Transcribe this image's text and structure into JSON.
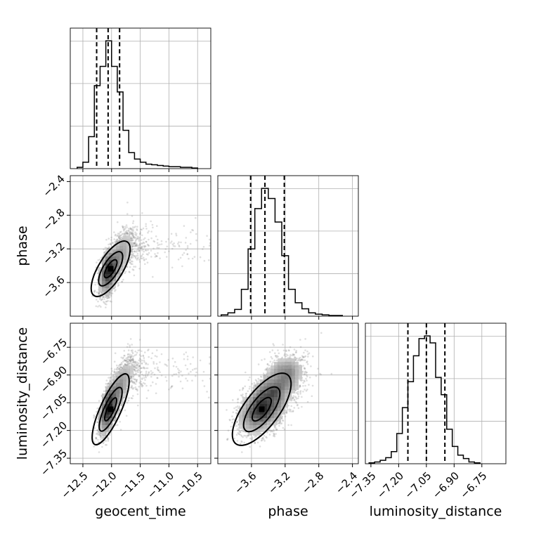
{
  "chart_data": {
    "type": "corner",
    "parameters": [
      "geocent_time",
      "phase",
      "luminosity_distance"
    ],
    "ranges": {
      "geocent_time": [
        -12.72,
        -10.27
      ],
      "phase": [
        -4.0,
        -2.33
      ],
      "luminosity_distance": [
        -7.38,
        -6.62
      ]
    },
    "ticks": {
      "geocent_time": [
        -12.5,
        -12.0,
        -11.5,
        -11.0,
        -10.5
      ],
      "phase": [
        -3.6,
        -3.2,
        -2.8,
        -2.4
      ],
      "luminosity_distance": [
        -7.35,
        -7.2,
        -7.05,
        -6.9,
        -6.75
      ]
    },
    "tick_labels": {
      "geocent_time": [
        "−12.5",
        "−12.0",
        "−11.5",
        "−11.0",
        "−10.5"
      ],
      "phase": [
        "−3.6",
        "−3.2",
        "−2.8",
        "−2.4"
      ],
      "luminosity_distance": [
        "−7.35",
        "−7.20",
        "−7.05",
        "−6.90",
        "−6.75"
      ]
    },
    "axis_labels": {
      "x": [
        "geocent_time",
        "phase",
        "luminosity_distance"
      ],
      "y": [
        "phase",
        "luminosity_distance"
      ]
    },
    "histograms": [
      {
        "parameter": "geocent_time",
        "bin_edges": [
          -12.6,
          -12.5,
          -12.4,
          -12.3,
          -12.2,
          -12.1,
          -12.0,
          -11.9,
          -11.8,
          -11.7,
          -11.6,
          -11.5,
          -11.4,
          -11.3,
          -11.2,
          -11.1,
          -11.0,
          -10.9,
          -10.8,
          -10.7,
          -10.6,
          -10.5
        ],
        "counts": [
          2,
          10,
          50,
          130,
          160,
          200,
          160,
          120,
          60,
          25,
          15,
          10,
          7,
          6,
          5,
          4,
          3,
          3,
          2,
          2,
          1
        ],
        "quantiles": [
          -12.26,
          -12.06,
          -11.86
        ]
      },
      {
        "parameter": "phase",
        "bin_edges": [
          -3.96,
          -3.88,
          -3.8,
          -3.72,
          -3.64,
          -3.56,
          -3.48,
          -3.4,
          -3.32,
          -3.24,
          -3.16,
          -3.08,
          -3.0,
          -2.92,
          -2.84,
          -2.76,
          -2.68,
          -2.6,
          -2.52
        ],
        "counts": [
          2,
          5,
          10,
          40,
          100,
          160,
          190,
          175,
          140,
          90,
          40,
          20,
          11,
          5,
          3,
          2,
          1,
          1
        ],
        "quantiles": [
          -3.61,
          -3.44,
          -3.21
        ]
      },
      {
        "parameter": "luminosity_distance",
        "bin_edges": [
          -7.36,
          -7.33,
          -7.3,
          -7.27,
          -7.24,
          -7.21,
          -7.18,
          -7.15,
          -7.12,
          -7.09,
          -7.06,
          -7.03,
          -7.0,
          -6.97,
          -6.94,
          -6.91,
          -6.88,
          -6.85,
          -6.82,
          -6.79,
          -6.76
        ],
        "counts": [
          1,
          2,
          4,
          7,
          14,
          35,
          65,
          95,
          125,
          145,
          148,
          140,
          100,
          80,
          40,
          20,
          10,
          6,
          2,
          1
        ],
        "quantiles": [
          -7.15,
          -7.05,
          -6.95
        ]
      }
    ],
    "distribution": {
      "geocent_time": {
        "peak": -12.0,
        "spread_left": 0.1,
        "spread_right": 0.45
      },
      "phase": {
        "peak": -3.42,
        "spread": 0.16,
        "corr_with_geocent_time": 0.55
      },
      "luminosity_distance": {
        "peak": -7.05,
        "spread": 0.1,
        "corr_with_geocent_time": 0.65,
        "corr_with_phase": 0.35
      }
    },
    "grid": true
  }
}
